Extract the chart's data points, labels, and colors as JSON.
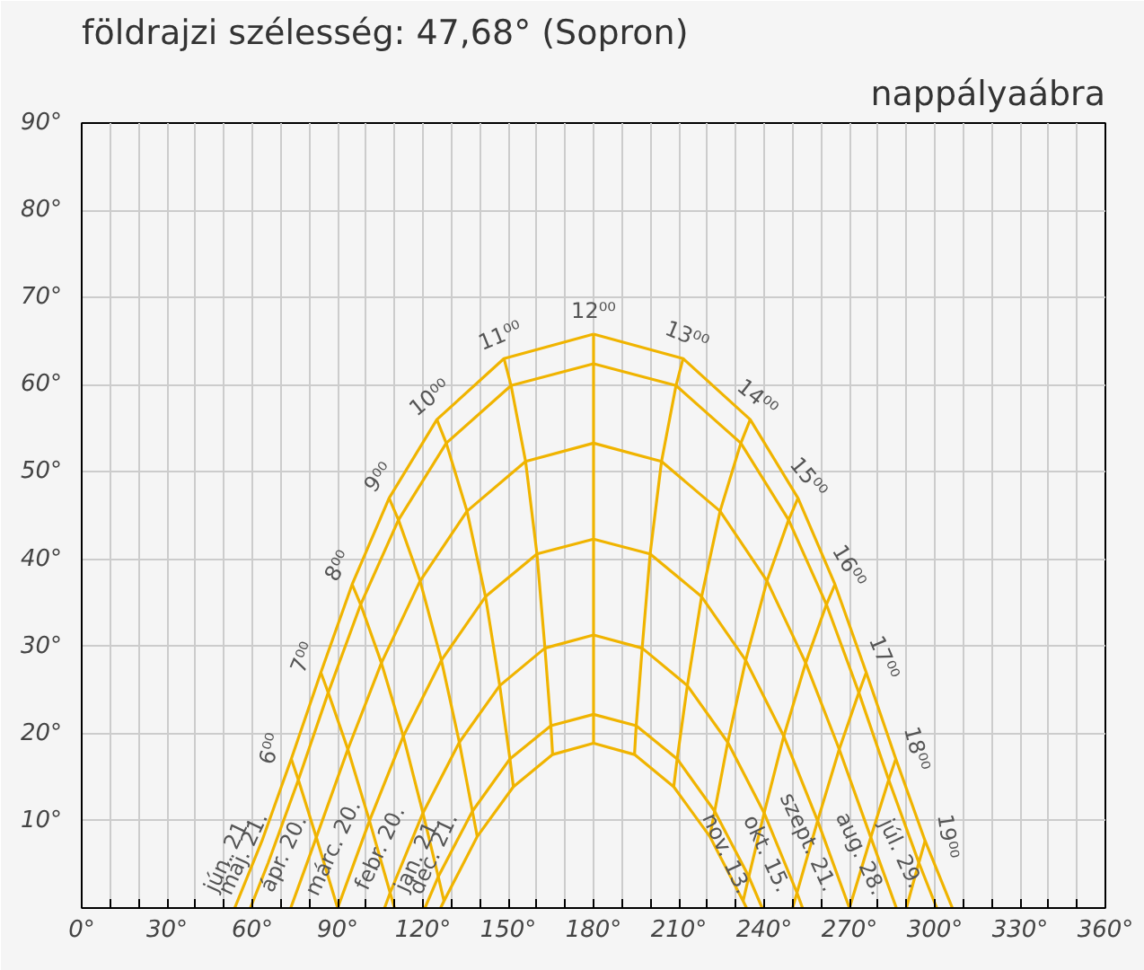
{
  "chart_data": {
    "type": "line",
    "title": "földrajzi szélesség: 47,68° (Sopron)",
    "subtitle": "nappályaábra",
    "xlim": [
      0,
      360
    ],
    "ylim": [
      0,
      90
    ],
    "xticks": [
      {
        "value": 0,
        "label": "0°"
      },
      {
        "value": 10,
        "label": null
      },
      {
        "value": 20,
        "label": null
      },
      {
        "value": 30,
        "label": "30°"
      },
      {
        "value": 40,
        "label": null
      },
      {
        "value": 50,
        "label": null
      },
      {
        "value": 60,
        "label": "60°"
      },
      {
        "value": 70,
        "label": null
      },
      {
        "value": 80,
        "label": null
      },
      {
        "value": 90,
        "label": "90°"
      },
      {
        "value": 100,
        "label": null
      },
      {
        "value": 110,
        "label": null
      },
      {
        "value": 120,
        "label": "120°"
      },
      {
        "value": 130,
        "label": null
      },
      {
        "value": 140,
        "label": null
      },
      {
        "value": 150,
        "label": "150°"
      },
      {
        "value": 160,
        "label": null
      },
      {
        "value": 170,
        "label": null
      },
      {
        "value": 180,
        "label": "180°"
      },
      {
        "value": 190,
        "label": null
      },
      {
        "value": 200,
        "label": null
      },
      {
        "value": 210,
        "label": "210°"
      },
      {
        "value": 220,
        "label": null
      },
      {
        "value": 230,
        "label": null
      },
      {
        "value": 240,
        "label": "240°"
      },
      {
        "value": 250,
        "label": null
      },
      {
        "value": 260,
        "label": null
      },
      {
        "value": 270,
        "label": "270°"
      },
      {
        "value": 280,
        "label": null
      },
      {
        "value": 290,
        "label": null
      },
      {
        "value": 300,
        "label": "300°"
      },
      {
        "value": 310,
        "label": null
      },
      {
        "value": 320,
        "label": null
      },
      {
        "value": 330,
        "label": "330°"
      },
      {
        "value": 340,
        "label": null
      },
      {
        "value": 350,
        "label": null
      },
      {
        "value": 360,
        "label": "360°"
      }
    ],
    "yticks": [
      {
        "value": 10,
        "label": "10°"
      },
      {
        "value": 20,
        "label": "20°"
      },
      {
        "value": 30,
        "label": "30°"
      },
      {
        "value": 40,
        "label": "40°"
      },
      {
        "value": 50,
        "label": "50°"
      },
      {
        "value": 60,
        "label": "60°"
      },
      {
        "value": 70,
        "label": "70°"
      },
      {
        "value": 80,
        "label": "80°"
      },
      {
        "value": 90,
        "label": "90°"
      }
    ],
    "grid": true,
    "marker": "none",
    "line_style": "solid",
    "series": [
      {
        "name": "jún. 21.",
        "color": "#f0b400",
        "x": [
          53.8,
          63.4,
          73.7,
          84.1,
          95.1,
          108.1,
          124.9,
          148.5,
          180
        ],
        "values": [
          0,
          7.7,
          17.1,
          27.0,
          37.1,
          47.0,
          56.0,
          63.0,
          65.8
        ]
      },
      {
        "color": "#f0b400",
        "x": [
          180,
          211.5,
          235.1,
          251.9,
          264.9,
          275.9,
          286.3,
          296.6,
          306.2
        ],
        "values": [
          65.8,
          63.0,
          56.0,
          47.0,
          37.1,
          27.0,
          17.1,
          7.7,
          0
        ]
      },
      {
        "name": "máj. 21.",
        "color": "#f0b400",
        "x": [
          59.3,
          65.6,
          76.2,
          86.7,
          98.1,
          111.4,
          128.2,
          151.0,
          180
        ],
        "values": [
          0,
          5.2,
          14.7,
          24.7,
          34.8,
          44.5,
          53.3,
          59.9,
          62.4
        ]
      },
      {
        "name": "júl. 29.",
        "color": "#f0b400",
        "x": [
          180,
          209.0,
          231.8,
          248.6,
          261.9,
          273.3,
          283.8,
          294.4,
          300.7
        ],
        "values": [
          62.4,
          59.9,
          53.3,
          44.5,
          34.8,
          24.7,
          14.7,
          5.2,
          0
        ]
      },
      {
        "name": "ápr. 20.",
        "color": "#f0b400",
        "x": [
          73.5,
          82.5,
          93.6,
          105.4,
          119.0,
          135.5,
          156.1,
          180
        ],
        "values": [
          0,
          8.1,
          18.2,
          28.1,
          37.5,
          45.5,
          51.2,
          53.3
        ]
      },
      {
        "name": "aug. 28.",
        "color": "#f0b400",
        "x": [
          180,
          203.9,
          224.5,
          241.0,
          254.6,
          266.4,
          277.5,
          286.5
        ],
        "values": [
          53.3,
          51.2,
          45.5,
          37.5,
          28.1,
          18.2,
          8.1,
          0
        ]
      },
      {
        "name": "márc. 20.",
        "color": "#f0b400",
        "x": [
          90,
          101.2,
          113.1,
          126.5,
          142.0,
          160.1,
          180
        ],
        "values": [
          0,
          10.0,
          19.7,
          28.4,
          35.7,
          40.6,
          42.3
        ]
      },
      {
        "name": "szept. 21.",
        "color": "#f0b400",
        "x": [
          180,
          199.9,
          218.0,
          233.5,
          246.9,
          258.8,
          270
        ],
        "values": [
          42.3,
          40.6,
          35.7,
          28.4,
          19.7,
          10.0,
          0
        ]
      },
      {
        "name": "febr. 20.",
        "color": "#f0b400",
        "x": [
          106.5,
          108.4,
          120.0,
          132.8,
          147.0,
          162.9,
          180
        ],
        "values": [
          0,
          1.7,
          10.9,
          19.0,
          25.5,
          29.8,
          31.3
        ]
      },
      {
        "name": "okt. 15.",
        "color": "#f0b400",
        "x": [
          180,
          197.1,
          213.0,
          227.2,
          240.0,
          251.6,
          253.5
        ],
        "values": [
          31.3,
          29.8,
          25.5,
          19.0,
          10.9,
          1.7,
          0
        ]
      },
      {
        "name": "jan. 21.",
        "color": "#f0b400",
        "x": [
          120.7,
          125.4,
          137.4,
          150.6,
          165.0,
          180
        ],
        "values": [
          0,
          3.6,
          11.1,
          17.1,
          20.9,
          22.2
        ]
      },
      {
        "name": "nov. 13.",
        "color": "#f0b400",
        "x": [
          180,
          195.0,
          209.4,
          222.6,
          234.6,
          239.3
        ],
        "values": [
          22.2,
          20.9,
          17.1,
          11.1,
          3.6,
          0
        ]
      },
      {
        "name": "dec. 21.",
        "color": "#f0b400",
        "x": [
          126.2,
          127.4,
          139.1,
          151.8,
          165.6,
          180
        ],
        "values": [
          0,
          0.8,
          8.2,
          13.9,
          17.6,
          18.9
        ]
      },
      {
        "color": "#f0b400",
        "x": [
          180,
          194.4,
          208.2,
          220.9,
          232.6,
          233.8
        ],
        "values": [
          18.9,
          17.6,
          13.9,
          8.2,
          0.8,
          0
        ]
      },
      {
        "name": "6⁰⁰",
        "color": "#f0b400",
        "x": [
          73.7,
          76.2,
          82.5,
          90
        ],
        "values": [
          17.1,
          14.7,
          8.1,
          0
        ]
      },
      {
        "name": "7⁰⁰",
        "color": "#f0b400",
        "x": [
          84.1,
          86.7,
          93.6,
          101.2,
          110.0
        ],
        "values": [
          27.0,
          24.7,
          18.2,
          10.0,
          0
        ]
      },
      {
        "name": "8⁰⁰",
        "color": "#f0b400",
        "x": [
          95.1,
          98.1,
          105.4,
          113.1,
          120.0,
          125.4,
          127.4
        ],
        "values": [
          37.1,
          34.8,
          28.1,
          19.7,
          10.9,
          3.6,
          0.8
        ]
      },
      {
        "name": "9⁰⁰",
        "color": "#f0b400",
        "x": [
          108.1,
          111.4,
          119.0,
          126.5,
          132.8,
          137.4,
          139.1
        ],
        "values": [
          47.0,
          44.5,
          37.5,
          28.4,
          19.0,
          11.1,
          8.2
        ]
      },
      {
        "name": "10⁰⁰",
        "color": "#f0b400",
        "x": [
          124.9,
          128.2,
          135.5,
          142.0,
          147.0,
          150.6,
          151.8
        ],
        "values": [
          56.0,
          53.3,
          45.5,
          35.7,
          25.5,
          17.1,
          13.9
        ]
      },
      {
        "name": "11⁰⁰",
        "color": "#f0b400",
        "x": [
          148.5,
          151.0,
          156.1,
          160.1,
          162.9,
          165.0,
          165.6
        ],
        "values": [
          63.0,
          59.9,
          51.2,
          40.6,
          29.8,
          20.9,
          17.6
        ]
      },
      {
        "name": "12⁰⁰",
        "color": "#f0b400",
        "x": [
          180,
          180,
          180,
          180,
          180,
          180,
          180
        ],
        "values": [
          65.8,
          62.4,
          53.3,
          42.3,
          31.3,
          22.2,
          18.9
        ]
      },
      {
        "name": "13⁰⁰",
        "color": "#f0b400",
        "x": [
          211.5,
          209.0,
          203.9,
          199.9,
          197.1,
          195.0,
          194.4
        ],
        "values": [
          63.0,
          59.9,
          51.2,
          40.6,
          29.8,
          20.9,
          17.6
        ]
      },
      {
        "name": "14⁰⁰",
        "color": "#f0b400",
        "x": [
          235.1,
          231.8,
          224.5,
          218.0,
          213.0,
          209.4,
          208.2
        ],
        "values": [
          56.0,
          53.3,
          45.5,
          35.7,
          25.5,
          17.1,
          13.9
        ]
      },
      {
        "name": "15⁰⁰",
        "color": "#f0b400",
        "x": [
          251.9,
          248.6,
          241.0,
          233.5,
          227.2,
          222.6,
          220.9
        ],
        "values": [
          47.0,
          44.5,
          37.5,
          28.4,
          19.0,
          11.1,
          8.2
        ]
      },
      {
        "name": "16⁰⁰",
        "color": "#f0b400",
        "x": [
          264.9,
          261.9,
          254.6,
          246.9,
          240.0,
          234.6,
          232.6
        ],
        "values": [
          37.1,
          34.8,
          28.1,
          19.7,
          10.9,
          3.6,
          0.8
        ]
      },
      {
        "name": "17⁰⁰",
        "color": "#f0b400",
        "x": [
          275.9,
          273.3,
          266.4,
          258.8,
          250.0
        ],
        "values": [
          27.0,
          24.7,
          18.2,
          10.0,
          0
        ]
      },
      {
        "name": "18⁰⁰",
        "color": "#f0b400",
        "x": [
          286.3,
          283.8,
          277.5,
          270
        ],
        "values": [
          17.1,
          14.7,
          8.1,
          0
        ]
      },
      {
        "name": "19⁰⁰",
        "color": "#f0b400",
        "x": [
          296.6,
          294.4,
          290.0
        ],
        "values": [
          7.7,
          5.2,
          0
        ]
      }
    ]
  }
}
